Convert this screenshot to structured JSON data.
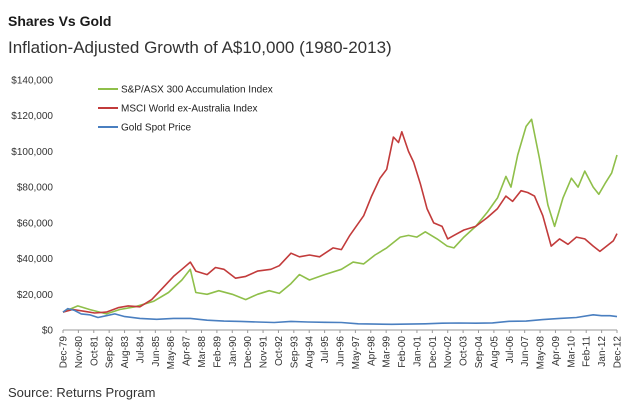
{
  "header": {
    "title": "Shares Vs Gold",
    "subtitle": "Inflation-Adjusted Growth of A$10,000 (1980-2013)"
  },
  "footer": {
    "source": "Source: Returns Program"
  },
  "chart_data": {
    "type": "line",
    "title": "Inflation-Adjusted Growth of A$10,000 (1980-2013)",
    "xlabel": "",
    "ylabel": "",
    "ylim": [
      0,
      140000
    ],
    "yticks": [
      0,
      20000,
      40000,
      60000,
      80000,
      100000,
      120000,
      140000
    ],
    "ytick_labels": [
      "$0",
      "$20,000",
      "$40,000",
      "$60,000",
      "$80,000",
      "$100,000",
      "$120,000",
      "$140,000"
    ],
    "xlim": [
      1979.917,
      2012.917
    ],
    "xtick_labels": [
      "Dec-79",
      "Nov-80",
      "Oct-81",
      "Sep-82",
      "Aug-83",
      "Jul-84",
      "Jun-85",
      "May-86",
      "Apr-87",
      "Mar-88",
      "Feb-89",
      "Jan-90",
      "Dec-90",
      "Nov-91",
      "Oct-92",
      "Sep-93",
      "Aug-94",
      "Jul-95",
      "Jun-96",
      "May-97",
      "Apr-98",
      "Mar-99",
      "Feb-00",
      "Jan-01",
      "Dec-01",
      "Nov-02",
      "Oct-03",
      "Sep-04",
      "Aug-05",
      "Jul-06",
      "Jun-07",
      "May-08",
      "Apr-09",
      "Mar-10",
      "Feb-11",
      "Jan-12",
      "Dec-12"
    ],
    "grid": false,
    "legend_position": "top-left",
    "series": [
      {
        "name": "S&P/ASX 300 Accumulation Index",
        "color": "#8fbf4a",
        "points": [
          [
            1979.917,
            10000
          ],
          [
            1980.8,
            13500
          ],
          [
            1981.5,
            11500
          ],
          [
            1982.5,
            9000
          ],
          [
            1983.3,
            11500
          ],
          [
            1984.2,
            13000
          ],
          [
            1985.3,
            16000
          ],
          [
            1986.2,
            21000
          ],
          [
            1987.0,
            28000
          ],
          [
            1987.5,
            34000
          ],
          [
            1987.83,
            21000
          ],
          [
            1988.5,
            20000
          ],
          [
            1989.2,
            22000
          ],
          [
            1990.0,
            20000
          ],
          [
            1990.8,
            17000
          ],
          [
            1991.5,
            20000
          ],
          [
            1992.2,
            22000
          ],
          [
            1992.8,
            20500
          ],
          [
            1993.5,
            26000
          ],
          [
            1994.0,
            31000
          ],
          [
            1994.6,
            28000
          ],
          [
            1995.5,
            31000
          ],
          [
            1996.5,
            34000
          ],
          [
            1997.2,
            38000
          ],
          [
            1997.83,
            37000
          ],
          [
            1998.5,
            42000
          ],
          [
            1999.2,
            46000
          ],
          [
            2000.0,
            52000
          ],
          [
            2000.5,
            53000
          ],
          [
            2001.0,
            52000
          ],
          [
            2001.5,
            55000
          ],
          [
            2002.2,
            51000
          ],
          [
            2002.8,
            47000
          ],
          [
            2003.2,
            46000
          ],
          [
            2003.8,
            52000
          ],
          [
            2004.5,
            58000
          ],
          [
            2005.2,
            66000
          ],
          [
            2005.8,
            74000
          ],
          [
            2006.3,
            86000
          ],
          [
            2006.6,
            80000
          ],
          [
            2007.0,
            98000
          ],
          [
            2007.5,
            114000
          ],
          [
            2007.83,
            118000
          ],
          [
            2008.3,
            96000
          ],
          [
            2008.8,
            70000
          ],
          [
            2009.2,
            58000
          ],
          [
            2009.7,
            74000
          ],
          [
            2010.2,
            85000
          ],
          [
            2010.6,
            80000
          ],
          [
            2011.0,
            89000
          ],
          [
            2011.5,
            80000
          ],
          [
            2011.83,
            76000
          ],
          [
            2012.2,
            82000
          ],
          [
            2012.6,
            88000
          ],
          [
            2012.917,
            98000
          ]
        ]
      },
      {
        "name": "MSCI World ex-Australia Index",
        "color": "#c23b3b",
        "points": [
          [
            1979.917,
            10000
          ],
          [
            1980.5,
            11500
          ],
          [
            1981.2,
            10500
          ],
          [
            1981.8,
            9500
          ],
          [
            1982.5,
            10000
          ],
          [
            1983.2,
            12500
          ],
          [
            1983.8,
            13500
          ],
          [
            1984.5,
            13000
          ],
          [
            1985.2,
            17000
          ],
          [
            1986.0,
            25000
          ],
          [
            1986.5,
            30000
          ],
          [
            1987.0,
            34000
          ],
          [
            1987.5,
            38000
          ],
          [
            1987.83,
            33000
          ],
          [
            1988.5,
            31000
          ],
          [
            1989.0,
            35000
          ],
          [
            1989.5,
            34000
          ],
          [
            1990.2,
            29000
          ],
          [
            1990.8,
            30000
          ],
          [
            1991.5,
            33000
          ],
          [
            1992.3,
            34000
          ],
          [
            1992.8,
            36000
          ],
          [
            1993.5,
            43000
          ],
          [
            1994.0,
            41000
          ],
          [
            1994.6,
            42000
          ],
          [
            1995.2,
            41000
          ],
          [
            1996.0,
            46000
          ],
          [
            1996.5,
            45000
          ],
          [
            1997.0,
            53000
          ],
          [
            1997.83,
            64000
          ],
          [
            1998.3,
            75000
          ],
          [
            1998.8,
            85000
          ],
          [
            1999.2,
            90000
          ],
          [
            1999.6,
            108000
          ],
          [
            1999.9,
            105000
          ],
          [
            2000.1,
            111000
          ],
          [
            2000.5,
            100000
          ],
          [
            2000.8,
            94000
          ],
          [
            2001.2,
            82000
          ],
          [
            2001.6,
            68000
          ],
          [
            2002.0,
            60000
          ],
          [
            2002.5,
            58000
          ],
          [
            2002.83,
            51000
          ],
          [
            2003.2,
            53000
          ],
          [
            2003.8,
            56000
          ],
          [
            2004.5,
            58000
          ],
          [
            2005.2,
            63000
          ],
          [
            2005.8,
            68000
          ],
          [
            2006.3,
            75000
          ],
          [
            2006.7,
            72000
          ],
          [
            2007.2,
            78000
          ],
          [
            2007.6,
            77000
          ],
          [
            2008.0,
            75000
          ],
          [
            2008.5,
            64000
          ],
          [
            2009.0,
            47000
          ],
          [
            2009.5,
            51000
          ],
          [
            2010.0,
            48000
          ],
          [
            2010.5,
            52000
          ],
          [
            2011.0,
            51000
          ],
          [
            2011.5,
            47000
          ],
          [
            2011.9,
            44000
          ],
          [
            2012.3,
            47000
          ],
          [
            2012.7,
            50000
          ],
          [
            2012.917,
            54000
          ]
        ]
      },
      {
        "name": "Gold Spot Price",
        "color": "#4a7fc0",
        "points": [
          [
            1979.917,
            10000
          ],
          [
            1980.2,
            12000
          ],
          [
            1980.6,
            11000
          ],
          [
            1981.0,
            9000
          ],
          [
            1981.5,
            8500
          ],
          [
            1982.0,
            7000
          ],
          [
            1982.5,
            8000
          ],
          [
            1983.0,
            9000
          ],
          [
            1983.6,
            7500
          ],
          [
            1984.5,
            6500
          ],
          [
            1985.5,
            6000
          ],
          [
            1986.5,
            6500
          ],
          [
            1987.5,
            6500
          ],
          [
            1988.5,
            5500
          ],
          [
            1989.5,
            5000
          ],
          [
            1990.5,
            4800
          ],
          [
            1991.5,
            4500
          ],
          [
            1992.5,
            4200
          ],
          [
            1993.5,
            4800
          ],
          [
            1994.5,
            4500
          ],
          [
            1995.5,
            4300
          ],
          [
            1996.5,
            4200
          ],
          [
            1997.5,
            3500
          ],
          [
            1998.5,
            3300
          ],
          [
            1999.5,
            3200
          ],
          [
            2000.5,
            3300
          ],
          [
            2001.5,
            3500
          ],
          [
            2002.5,
            3800
          ],
          [
            2003.5,
            3900
          ],
          [
            2004.5,
            3800
          ],
          [
            2005.5,
            4000
          ],
          [
            2006.5,
            4900
          ],
          [
            2007.5,
            5000
          ],
          [
            2008.5,
            5800
          ],
          [
            2009.5,
            6500
          ],
          [
            2010.5,
            7000
          ],
          [
            2011.5,
            8500
          ],
          [
            2012.0,
            8000
          ],
          [
            2012.5,
            8000
          ],
          [
            2012.917,
            7500
          ]
        ]
      }
    ]
  }
}
